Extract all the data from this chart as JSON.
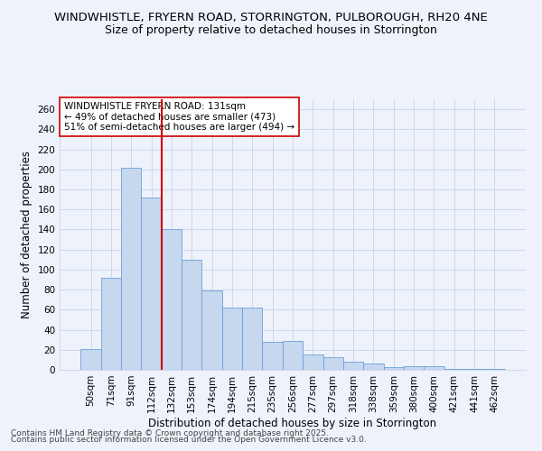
{
  "title_line1": "WINDWHISTLE, FRYERN ROAD, STORRINGTON, PULBOROUGH, RH20 4NE",
  "title_line2": "Size of property relative to detached houses in Storrington",
  "xlabel": "Distribution of detached houses by size in Storrington",
  "ylabel": "Number of detached properties",
  "categories": [
    "50sqm",
    "71sqm",
    "91sqm",
    "112sqm",
    "132sqm",
    "153sqm",
    "174sqm",
    "194sqm",
    "215sqm",
    "235sqm",
    "256sqm",
    "277sqm",
    "297sqm",
    "318sqm",
    "338sqm",
    "359sqm",
    "380sqm",
    "400sqm",
    "421sqm",
    "441sqm",
    "462sqm"
  ],
  "values": [
    21,
    92,
    202,
    172,
    140,
    110,
    79,
    62,
    62,
    28,
    29,
    15,
    13,
    8,
    6,
    3,
    4,
    4,
    1,
    1,
    1
  ],
  "bar_color": "#c5d8ee",
  "bar_edge_color": "#6a9fd8",
  "vline_color": "#cc0000",
  "annotation_text": "WINDWHISTLE FRYERN ROAD: 131sqm\n← 49% of detached houses are smaller (473)\n51% of semi-detached houses are larger (494) →",
  "annotation_box_color": "#ffffff",
  "annotation_box_edge": "#cc0000",
  "ylim": [
    0,
    270
  ],
  "yticks": [
    0,
    20,
    40,
    60,
    80,
    100,
    120,
    140,
    160,
    180,
    200,
    220,
    240,
    260
  ],
  "footnote1": "Contains HM Land Registry data © Crown copyright and database right 2025.",
  "footnote2": "Contains public sector information licensed under the Open Government Licence v3.0.",
  "background_color": "#eef2fb",
  "grid_color": "#c8d4e8",
  "title_fontsize": 9.5,
  "subtitle_fontsize": 9,
  "axis_label_fontsize": 8.5,
  "tick_fontsize": 7.5,
  "annotation_fontsize": 7.5,
  "footnote_fontsize": 6.5
}
